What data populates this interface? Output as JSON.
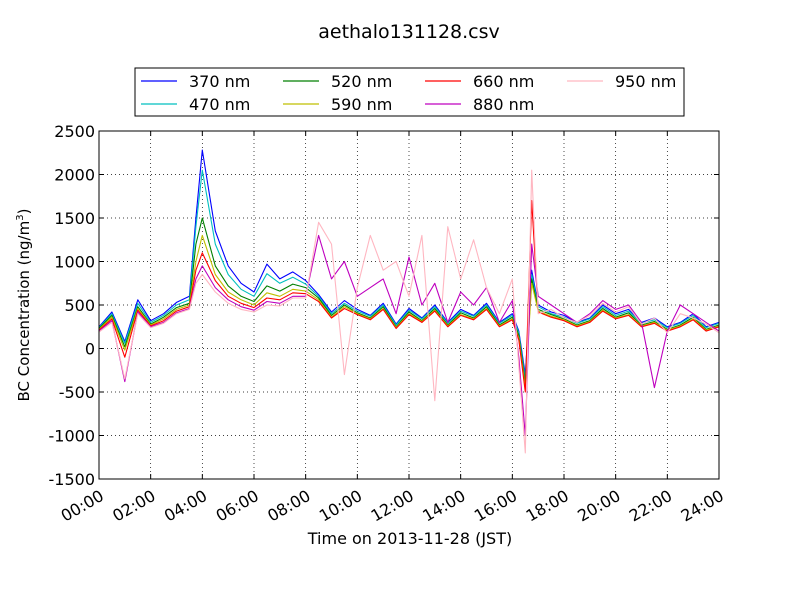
{
  "chart_data": {
    "type": "line",
    "title": "aethalo131128.csv",
    "xlabel": "Time on 2013-11-28 (JST)",
    "ylabel_main": "BC Concentration (ng/m",
    "ylabel_sup": "3",
    "ylabel_close": ")",
    "xlim": [
      "00:00",
      "24:00"
    ],
    "ylim": [
      -1500,
      2500
    ],
    "grid": true,
    "legend_placement": "top-center",
    "x_ticks": [
      "00:00",
      "02:00",
      "04:00",
      "06:00",
      "08:00",
      "10:00",
      "12:00",
      "14:00",
      "16:00",
      "18:00",
      "20:00",
      "22:00",
      "24:00"
    ],
    "y_ticks": [
      "-1500",
      "-1000",
      "-500",
      "0",
      "500",
      "1000",
      "1500",
      "2000",
      "2500"
    ],
    "x": [
      "00:00",
      "00:30",
      "01:00",
      "01:30",
      "02:00",
      "02:30",
      "03:00",
      "03:30",
      "03:45",
      "04:00",
      "04:30",
      "05:00",
      "05:30",
      "06:00",
      "06:30",
      "07:00",
      "07:30",
      "08:00",
      "08:30",
      "09:00",
      "09:30",
      "10:00",
      "10:30",
      "11:00",
      "11:30",
      "12:00",
      "12:30",
      "13:00",
      "13:30",
      "14:00",
      "14:30",
      "15:00",
      "15:30",
      "16:00",
      "16:15",
      "16:30",
      "16:45",
      "17:00",
      "17:30",
      "18:00",
      "18:30",
      "19:00",
      "19:30",
      "20:00",
      "20:30",
      "21:00",
      "21:30",
      "22:00",
      "22:30",
      "23:00",
      "23:30",
      "24:00"
    ],
    "series": [
      {
        "name": "370 nm",
        "color": "#0000ff",
        "values": [
          250,
          420,
          80,
          560,
          320,
          400,
          530,
          600,
          1500,
          2280,
          1350,
          950,
          750,
          650,
          970,
          800,
          880,
          780,
          620,
          420,
          550,
          450,
          380,
          520,
          280,
          460,
          350,
          500,
          300,
          450,
          380,
          520,
          300,
          400,
          200,
          -300,
          900,
          500,
          420,
          380,
          300,
          350,
          500,
          400,
          450,
          300,
          350,
          250,
          300,
          400,
          250,
          300
        ]
      },
      {
        "name": "470 nm",
        "color": "#00bfbf",
        "values": [
          240,
          400,
          60,
          520,
          300,
          380,
          500,
          560,
          1400,
          2050,
          1200,
          850,
          680,
          600,
          860,
          750,
          820,
          740,
          600,
          400,
          520,
          430,
          370,
          500,
          270,
          440,
          340,
          480,
          290,
          430,
          370,
          500,
          290,
          380,
          180,
          -350,
          850,
          480,
          400,
          360,
          290,
          340,
          480,
          380,
          430,
          290,
          330,
          240,
          290,
          380,
          240,
          290
        ]
      },
      {
        "name": "520 nm",
        "color": "#007f00",
        "values": [
          230,
          380,
          20,
          480,
          280,
          360,
          470,
          520,
          1200,
          1500,
          950,
          720,
          600,
          540,
          720,
          660,
          740,
          700,
          580,
          380,
          500,
          410,
          350,
          480,
          250,
          420,
          320,
          460,
          270,
          410,
          350,
          480,
          270,
          360,
          150,
          -400,
          800,
          450,
          390,
          340,
          270,
          320,
          460,
          360,
          410,
          270,
          310,
          220,
          270,
          360,
          220,
          270
        ]
      },
      {
        "name": "590 nm",
        "color": "#bfbf00",
        "values": [
          220,
          360,
          -20,
          460,
          270,
          340,
          450,
          500,
          1000,
          1300,
          850,
          650,
          560,
          500,
          640,
          600,
          680,
          660,
          560,
          360,
          480,
          400,
          340,
          460,
          240,
          400,
          310,
          440,
          260,
          390,
          340,
          460,
          260,
          340,
          120,
          -450,
          750,
          430,
          370,
          330,
          260,
          310,
          440,
          350,
          390,
          260,
          300,
          210,
          260,
          340,
          210,
          260
        ]
      },
      {
        "name": "660 nm",
        "color": "#ff0000",
        "values": [
          210,
          340,
          -100,
          440,
          260,
          320,
          430,
          480,
          900,
          1100,
          780,
          600,
          520,
          470,
          580,
          560,
          640,
          630,
          540,
          350,
          460,
          390,
          330,
          450,
          230,
          390,
          300,
          430,
          250,
          380,
          330,
          450,
          250,
          330,
          100,
          -500,
          1700,
          420,
          360,
          320,
          250,
          300,
          430,
          340,
          380,
          250,
          290,
          200,
          250,
          330,
          200,
          250
        ]
      },
      {
        "name": "880 nm",
        "color": "#bf00bf",
        "values": [
          200,
          320,
          -380,
          420,
          250,
          300,
          410,
          460,
          800,
          950,
          700,
          560,
          480,
          440,
          540,
          520,
          600,
          600,
          1300,
          800,
          1000,
          600,
          700,
          800,
          400,
          1050,
          500,
          750,
          300,
          650,
          500,
          700,
          300,
          550,
          -100,
          -1000,
          1200,
          600,
          500,
          400,
          300,
          400,
          550,
          450,
          500,
          300,
          -450,
          200,
          500,
          400,
          300,
          200
        ]
      },
      {
        "name": "950 nm",
        "color": "#ffb6c1",
        "values": [
          190,
          300,
          -350,
          400,
          240,
          290,
          400,
          450,
          750,
          850,
          650,
          520,
          450,
          420,
          500,
          490,
          580,
          580,
          1450,
          1200,
          -300,
          700,
          1300,
          900,
          1000,
          600,
          1300,
          -600,
          1400,
          800,
          1250,
          700,
          400,
          800,
          -200,
          -1200,
          2050,
          400,
          450,
          350,
          300,
          380,
          520,
          420,
          480,
          280,
          350,
          180,
          400,
          350,
          280,
          180
        ]
      }
    ]
  }
}
